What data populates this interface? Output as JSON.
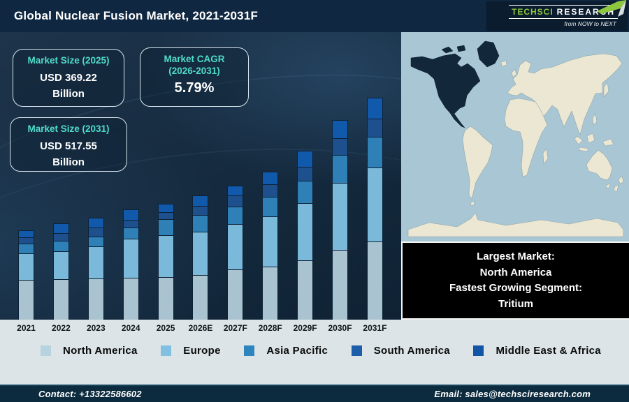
{
  "header": {
    "title": "Global Nuclear Fusion Market, 2021-2031F",
    "logo": {
      "part1": "TechSci",
      "part2": "Research",
      "tagline": "from NOW to NEXT"
    }
  },
  "callouts": [
    {
      "heading": "Market Size (2025)",
      "value": "USD 369.22",
      "unit": "Billion"
    },
    {
      "heading": "Market CAGR",
      "heading2": "(2026-2031)",
      "value": "5.79%"
    },
    {
      "heading": "Market Size (2031)",
      "value": "USD 517.55",
      "unit": "Billion"
    }
  ],
  "chart_data": {
    "type": "bar",
    "stacked": true,
    "title": "Global Nuclear Fusion Market, 2021-2031F",
    "xlabel": "",
    "ylabel": "",
    "units": "relative visual height (no y-axis shown in figure)",
    "ylim": [
      0,
      330
    ],
    "grid": false,
    "legend_position": "bottom",
    "categories": [
      "2021",
      "2022",
      "2023",
      "2024",
      "2025",
      "2026E",
      "2027F",
      "2028F",
      "2029F",
      "2030F",
      "2031F"
    ],
    "series": [
      {
        "name": "North America",
        "color": "#aac3d0",
        "values": [
          57,
          58,
          59,
          60,
          61,
          64,
          72,
          76,
          85,
          100,
          112
        ]
      },
      {
        "name": "Europe",
        "color": "#7bb9da",
        "values": [
          38,
          40,
          46,
          56,
          60,
          62,
          65,
          72,
          82,
          96,
          106
        ]
      },
      {
        "name": "Asia Pacific",
        "color": "#2e80b7",
        "values": [
          14,
          15,
          14,
          16,
          23,
          24,
          25,
          28,
          32,
          40,
          44
        ]
      },
      {
        "name": "South America",
        "color": "#1d508c",
        "values": [
          9,
          11,
          13,
          11,
          10,
          13,
          16,
          18,
          20,
          24,
          26
        ]
      },
      {
        "name": "Middle East & Africa",
        "color": "#1159ab",
        "values": [
          10,
          14,
          14,
          15,
          12,
          15,
          14,
          18,
          23,
          26,
          30
        ]
      }
    ],
    "annotations": {
      "market_size_2025_usd_billion": 369.22,
      "market_size_2031_usd_billion": 517.55,
      "cagr_2026_2031_percent": 5.79
    }
  },
  "legend": {
    "items": [
      {
        "label": "North America",
        "color": "#b6d3df"
      },
      {
        "label": "Europe",
        "color": "#80c0e0"
      },
      {
        "label": "Asia Pacific",
        "color": "#2e85bd"
      },
      {
        "label": "South America",
        "color": "#1c5ea8"
      },
      {
        "label": "Middle East & Africa",
        "color": "#1255a6"
      }
    ]
  },
  "map": {
    "highlight": "North America",
    "caption_lines": [
      "Largest Market:",
      "North America",
      "Fastest Growing Segment:",
      "Tritium"
    ]
  },
  "footer": {
    "contact": "Contact: +13322586602",
    "email": "Email: sales@techsciresearch.com"
  },
  "colors": {
    "accent_teal": "#4fdccb",
    "header_bg": "#0f2740",
    "map_ocean": "#a9c6d5",
    "map_land": "#ece7d2",
    "map_highlight": "#13273b",
    "logo_green": "#8dc63f"
  }
}
